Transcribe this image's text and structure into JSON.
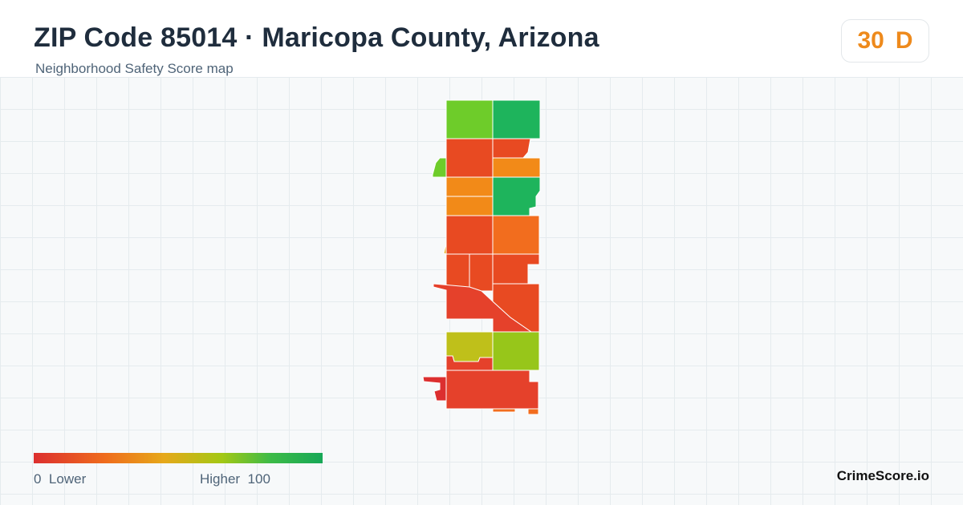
{
  "header": {
    "title": "ZIP Code 85014 · Maricopa County, Arizona",
    "subtitle": "Neighborhood Safety Score map"
  },
  "score": {
    "value": "30",
    "grade": "D",
    "color": "#ee8a1c"
  },
  "legend": {
    "min_value": "0",
    "min_label": "Lower",
    "max_label": "Higher",
    "max_value": "100",
    "colors": [
      "#dc2f2f",
      "#ef6d1c",
      "#e6a81a",
      "#a4c814",
      "#3dbb47",
      "#17a857"
    ]
  },
  "brand": "CrimeScore.io",
  "map_palette": {
    "red": "#e5412b",
    "red_orange": "#e84a22",
    "orange": "#f26d1e",
    "amber": "#f28a18",
    "yellow_green": "#bfc01a",
    "lime": "#97c61a",
    "green_light": "#6ecc2a",
    "green": "#1eb45c"
  }
}
